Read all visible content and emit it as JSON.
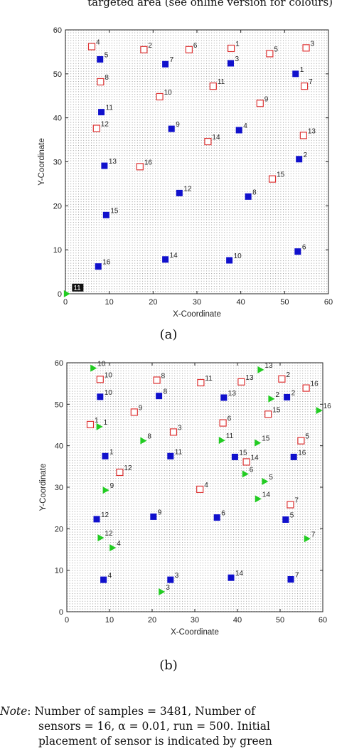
{
  "top_caption": "targeted area (see online version for colours)",
  "panel_labels": [
    "(a)",
    "(b)"
  ],
  "note": {
    "label": "Note",
    "line1": ": Number of samples = 3481, Number of",
    "line2": "sensors = 16,  α  = 0.01, run = 500. Initial",
    "line3": "placement of sensor is indicated by green"
  },
  "colors": {
    "initial": "#22cc22",
    "final": "#1010cc",
    "target": "#dd3333",
    "grid": "#9a9a9a"
  },
  "chart_data": [
    {
      "type": "scatter",
      "panel": "(a)",
      "xlabel": "X-Coordinate",
      "ylabel": "Y-Coordinate",
      "xlim": [
        0,
        60
      ],
      "ylim": [
        0,
        60
      ],
      "xticks": [
        0,
        10,
        20,
        30,
        40,
        50,
        60
      ],
      "yticks": [
        0,
        10,
        20,
        30,
        40,
        50,
        60
      ],
      "grid": "dotted",
      "series": [
        {
          "marker": "triangle",
          "color": "#22cc22",
          "points": [
            {
              "label": "",
              "x": 0.3,
              "y": 0
            }
          ]
        },
        {
          "marker": "square-filled",
          "color": "#1010cc",
          "points": [
            {
              "label": "1",
              "x": 52.5,
              "y": 50
            },
            {
              "label": "2",
              "x": 53.3,
              "y": 30.6
            },
            {
              "label": "3",
              "x": 37.7,
              "y": 52.4
            },
            {
              "label": "4",
              "x": 39.6,
              "y": 37.2
            },
            {
              "label": "5",
              "x": 7.9,
              "y": 53.3
            },
            {
              "label": "6",
              "x": 53,
              "y": 9.6
            },
            {
              "label": "7",
              "x": 22.8,
              "y": 52.2
            },
            {
              "label": "8",
              "x": 41.7,
              "y": 22.1
            },
            {
              "label": "9",
              "x": 24.2,
              "y": 37.5
            },
            {
              "label": "10",
              "x": 37.4,
              "y": 7.6
            },
            {
              "label": "11",
              "x": 8.2,
              "y": 41.3
            },
            {
              "label": "12",
              "x": 26,
              "y": 22.9
            },
            {
              "label": "13",
              "x": 8.9,
              "y": 29.1
            },
            {
              "label": "14",
              "x": 22.8,
              "y": 7.8
            },
            {
              "label": "15",
              "x": 9.3,
              "y": 17.9
            },
            {
              "label": "16",
              "x": 7.5,
              "y": 6.2
            }
          ]
        },
        {
          "marker": "square-open",
          "color": "#dd3333",
          "points": [
            {
              "label": "1",
              "x": 37.8,
              "y": 55.8
            },
            {
              "label": "2",
              "x": 17.9,
              "y": 55.5
            },
            {
              "label": "3",
              "x": 54.9,
              "y": 55.9
            },
            {
              "label": "4",
              "x": 6,
              "y": 56.2
            },
            {
              "label": "5",
              "x": 46.6,
              "y": 54.6
            },
            {
              "label": "6",
              "x": 28.2,
              "y": 55.5
            },
            {
              "label": "7",
              "x": 54.5,
              "y": 47.2
            },
            {
              "label": "8",
              "x": 8,
              "y": 48.2
            },
            {
              "label": "9",
              "x": 44.4,
              "y": 43.3
            },
            {
              "label": "10",
              "x": 21.5,
              "y": 44.8
            },
            {
              "label": "11",
              "x": 33.7,
              "y": 47.2
            },
            {
              "label": "12",
              "x": 7.1,
              "y": 37.6
            },
            {
              "label": "13",
              "x": 54.3,
              "y": 36
            },
            {
              "label": "14",
              "x": 32.5,
              "y": 34.6
            },
            {
              "label": "15",
              "x": 47.2,
              "y": 26.1
            },
            {
              "label": "16",
              "x": 17,
              "y": 28.9
            }
          ]
        }
      ],
      "annotations": [
        {
          "text": "11",
          "x": 2,
          "y": 1
        }
      ]
    },
    {
      "type": "scatter",
      "panel": "(b)",
      "xlabel": "X-Coordinate",
      "ylabel": "Y-Coordinate",
      "xlim": [
        0,
        60
      ],
      "ylim": [
        0,
        60
      ],
      "xticks": [
        0,
        10,
        20,
        30,
        40,
        50,
        60
      ],
      "yticks": [
        0,
        10,
        20,
        30,
        40,
        50,
        60
      ],
      "grid": "dotted",
      "series": [
        {
          "marker": "triangle",
          "color": "#22cc22",
          "points": [
            {
              "label": "1",
              "x": 7.6,
              "y": 44.6
            },
            {
              "label": "2",
              "x": 47.9,
              "y": 51.3
            },
            {
              "label": "3",
              "x": 22.2,
              "y": 4.8
            },
            {
              "label": "4",
              "x": 10.7,
              "y": 15.4
            },
            {
              "label": "5",
              "x": 46.4,
              "y": 31.4
            },
            {
              "label": "6",
              "x": 41.8,
              "y": 33.2
            },
            {
              "label": "7",
              "x": 56.3,
              "y": 17.6
            },
            {
              "label": "8",
              "x": 17.9,
              "y": 41.2
            },
            {
              "label": "9",
              "x": 9.1,
              "y": 29.3
            },
            {
              "label": "10",
              "x": 6.2,
              "y": 58.7
            },
            {
              "label": "11",
              "x": 36.3,
              "y": 41.3
            },
            {
              "label": "12",
              "x": 7.9,
              "y": 17.8
            },
            {
              "label": "13",
              "x": 45.4,
              "y": 58.3
            },
            {
              "label": "14",
              "x": 44.8,
              "y": 27.2
            },
            {
              "label": "15",
              "x": 44.7,
              "y": 40.7
            },
            {
              "label": "16",
              "x": 59.1,
              "y": 48.5
            }
          ]
        },
        {
          "marker": "square-filled",
          "color": "#1010cc",
          "points": [
            {
              "label": "1",
              "x": 9,
              "y": 37.5
            },
            {
              "label": "2",
              "x": 51.6,
              "y": 51.7
            },
            {
              "label": "3",
              "x": 24.3,
              "y": 7.7
            },
            {
              "label": "4",
              "x": 8.6,
              "y": 7.7
            },
            {
              "label": "5",
              "x": 51.3,
              "y": 22.2
            },
            {
              "label": "6",
              "x": 35.2,
              "y": 22.7
            },
            {
              "label": "7",
              "x": 52.5,
              "y": 7.8
            },
            {
              "label": "8",
              "x": 21.6,
              "y": 52
            },
            {
              "label": "9",
              "x": 20.3,
              "y": 22.9
            },
            {
              "label": "10",
              "x": 7.8,
              "y": 51.8
            },
            {
              "label": "11",
              "x": 24.3,
              "y": 37.5
            },
            {
              "label": "12",
              "x": 7,
              "y": 22.3
            },
            {
              "label": "13",
              "x": 36.8,
              "y": 51.6
            },
            {
              "label": "14",
              "x": 38.5,
              "y": 8.2
            },
            {
              "label": "15",
              "x": 39.4,
              "y": 37.3
            },
            {
              "label": "16",
              "x": 53.2,
              "y": 37.3
            }
          ]
        },
        {
          "marker": "square-open",
          "color": "#dd3333",
          "points": [
            {
              "label": "1",
              "x": 5.5,
              "y": 45.1
            },
            {
              "label": "2",
              "x": 50.4,
              "y": 56.1
            },
            {
              "label": "3",
              "x": 25,
              "y": 43.3
            },
            {
              "label": "4",
              "x": 31.2,
              "y": 29.5
            },
            {
              "label": "5",
              "x": 54.9,
              "y": 41.2
            },
            {
              "label": "6",
              "x": 36.6,
              "y": 45.5
            },
            {
              "label": "7",
              "x": 52.4,
              "y": 25.8
            },
            {
              "label": "8",
              "x": 21.1,
              "y": 55.8
            },
            {
              "label": "9",
              "x": 15.8,
              "y": 48.1
            },
            {
              "label": "10",
              "x": 7.8,
              "y": 56
            },
            {
              "label": "11",
              "x": 31.4,
              "y": 55.2
            },
            {
              "label": "12",
              "x": 12.4,
              "y": 33.6
            },
            {
              "label": "13",
              "x": 40.9,
              "y": 55.4
            },
            {
              "label": "14",
              "x": 42.1,
              "y": 36.1
            },
            {
              "label": "15",
              "x": 47.2,
              "y": 47.6
            },
            {
              "label": "16",
              "x": 56.1,
              "y": 53.9
            }
          ]
        }
      ]
    }
  ]
}
